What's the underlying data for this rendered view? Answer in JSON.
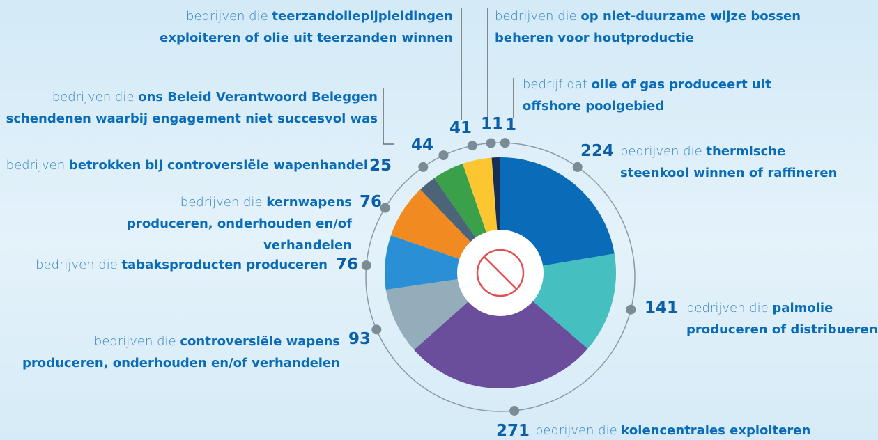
{
  "chart_data": {
    "type": "pie",
    "values": [
      224,
      141,
      271,
      93,
      76,
      76,
      25,
      44,
      41,
      11,
      1
    ],
    "label_prefix": [
      "bedrijven die",
      "bedrijven die",
      "bedrijven die",
      "bedrijven die",
      "bedrijven die",
      "bedrijven die",
      "bedrijven",
      "bedrijven die",
      "bedrijven die",
      "bedrijven die",
      "bedrijf dat"
    ],
    "label_highlight": [
      "thermische steenkool winnen of raffineren",
      "palmolie produceren of distribueren",
      "kolencentrales exploiteren",
      "controversiële wapens produceren, onderhouden en/of verhandelen",
      "tabaksproducten produceren",
      "kernwapens produceren, onderhouden en/of verhandelen",
      "betrokken bij controversiële wapenhandel",
      "ons Beleid Verantwoord Beleggen schendenen waarbij engagement niet succesvol was",
      "teerzandoliepijpleidingen exploiteren of olie uit teerzanden winnen",
      "op niet-duurzame wijze bossen beheren voor houtproductie",
      "olie of gas produceert uit offshore poolgebied"
    ],
    "colors": [
      "#0a6cb8",
      "#45bfbf",
      "#6a4e9c",
      "#94adbb",
      "#2a8fd4",
      "#f28a22",
      "#4b6478",
      "#3ba04a",
      "#fcc631",
      "#152f55",
      "#e8642a"
    ]
  }
}
